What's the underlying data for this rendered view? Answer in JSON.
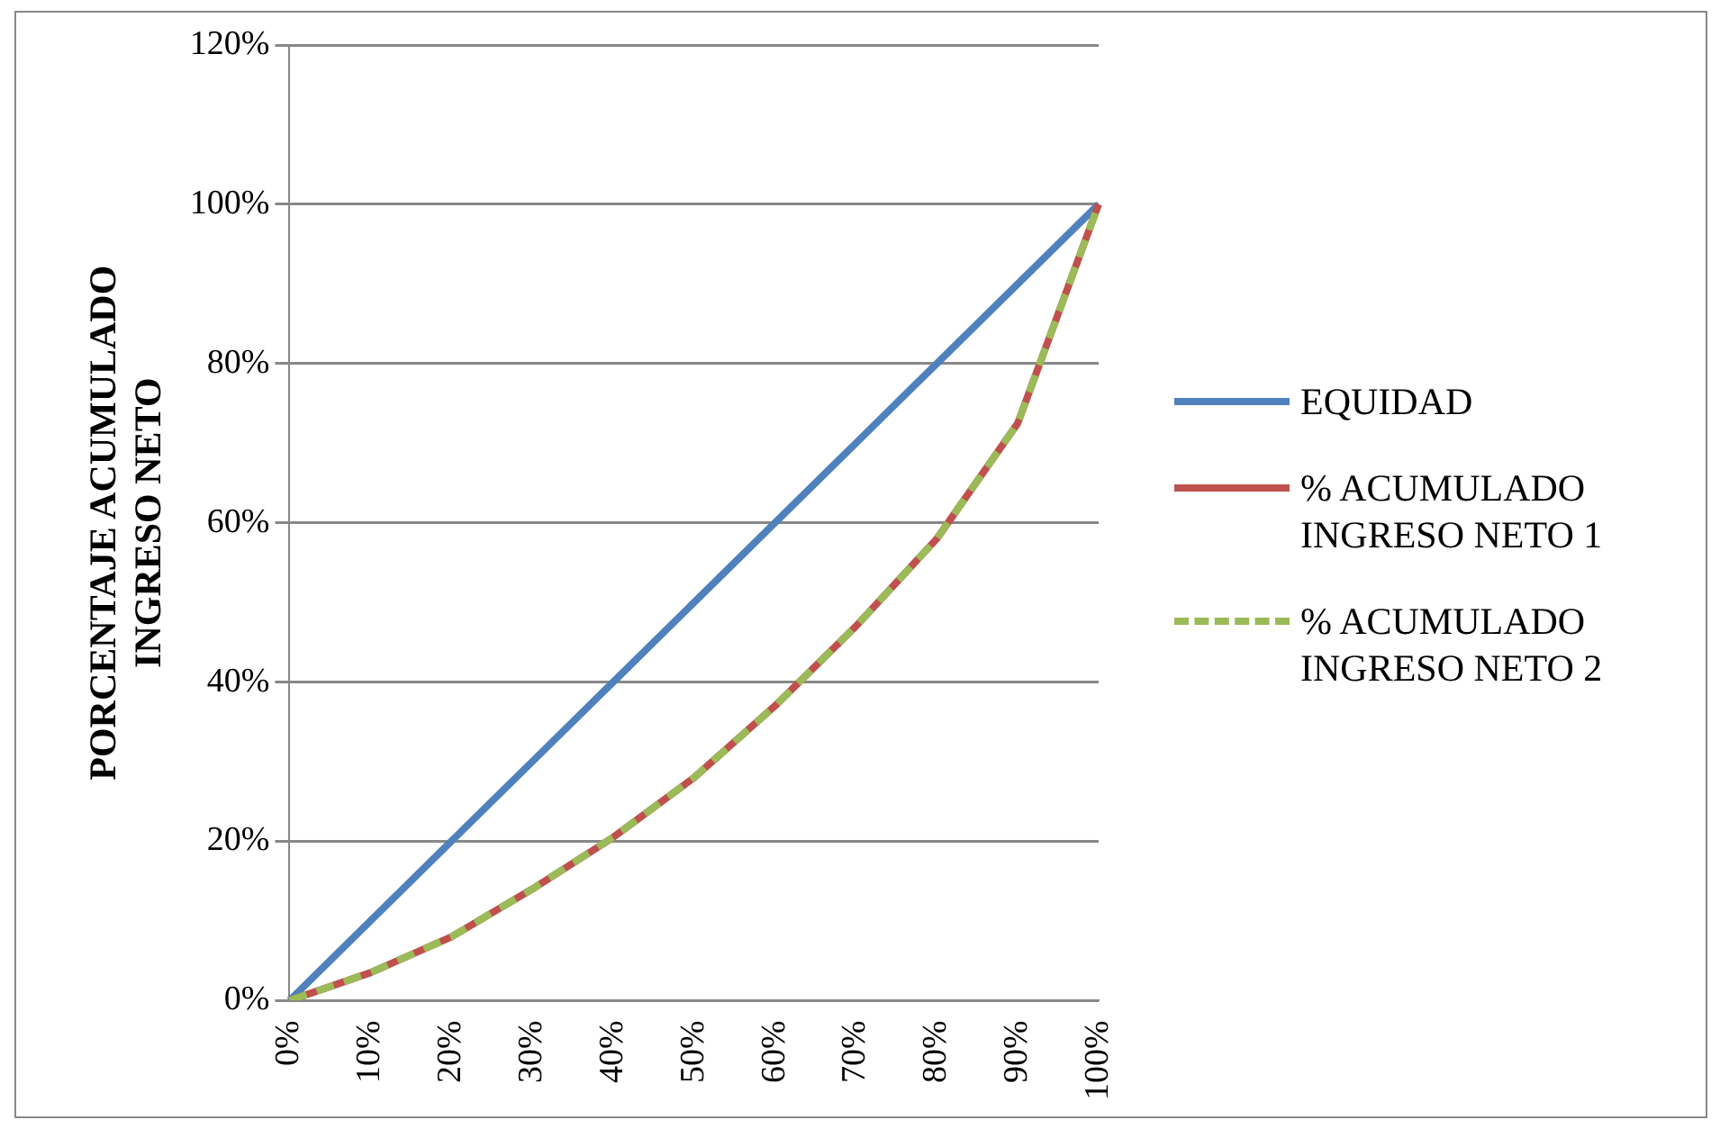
{
  "chart_data": {
    "type": "line",
    "ylabel": "PORCENTAJE ACUMULADO\nINGRESO NETO",
    "categories": [
      "0%",
      "10%",
      "20%",
      "30%",
      "40%",
      "50%",
      "60%",
      "70%",
      "80%",
      "90%",
      "100%"
    ],
    "series": [
      {
        "name": "EQUIDAD",
        "color": "#4f81bd",
        "values": [
          0,
          10,
          20,
          30,
          40,
          50,
          60,
          70,
          80,
          90,
          100
        ]
      },
      {
        "name": "% ACUMULADO\nINGRESO NETO 1",
        "color": "#c0504d",
        "values": [
          0,
          3.5,
          8,
          14,
          20.5,
          28,
          37,
          47,
          58,
          72.5,
          100
        ]
      },
      {
        "name": "% ACUMULADO\nINGRESO NETO 2",
        "color": "#9bbb59",
        "line_style": "dashed",
        "values": [
          0,
          3.5,
          8,
          14,
          20.5,
          28,
          37,
          47,
          58,
          72.5,
          100
        ]
      }
    ],
    "ylim": [
      0,
      120
    ],
    "yticks": [
      {
        "value": 0,
        "label": "0%"
      },
      {
        "value": 20,
        "label": "20%"
      },
      {
        "value": 40,
        "label": "40%"
      },
      {
        "value": 60,
        "label": "60%"
      },
      {
        "value": 80,
        "label": "80%"
      },
      {
        "value": 100,
        "label": "100%"
      },
      {
        "value": 120,
        "label": "120%"
      }
    ],
    "grid": "y",
    "legend": "right",
    "marker": "none"
  }
}
